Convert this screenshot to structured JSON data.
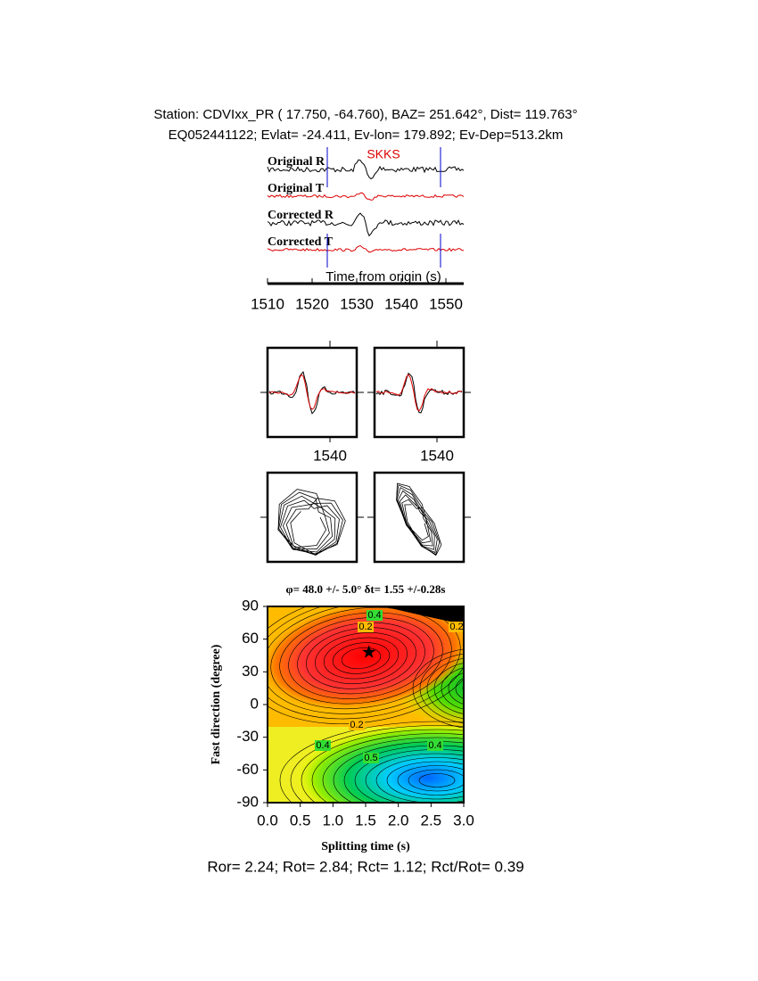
{
  "header": {
    "station": "Station: CDVIxx_PR (  17.750,  -64.760), BAZ=  251.642°, Dist=  119.763°",
    "event": "EQ052441122; Evlat= -24.411, Ev-lon= 179.892; Ev-Dep=513.2km"
  },
  "chart_data": [
    {
      "type": "waveform",
      "traces": [
        "Original R",
        "Original T",
        "Corrected R",
        "Corrected T"
      ],
      "phase": "SKKS",
      "xlabel": "Time from origin (s)",
      "xlim": [
        1510,
        1554
      ],
      "xticks": [
        1510,
        1520,
        1530,
        1540,
        1550
      ]
    },
    {
      "type": "waveform-window",
      "xticks": [
        1540
      ]
    },
    {
      "type": "waveform-window",
      "xticks": [
        1540
      ]
    },
    {
      "type": "contour",
      "title": "φ= 48.0 +/- 5.0° δt= 1.55 +/-0.28s",
      "xlabel": "Splitting time (s)",
      "ylabel": "Fast direction (degree)",
      "xlim": [
        0,
        3
      ],
      "ylim": [
        -90,
        90
      ],
      "xticks": [
        {
          "value": 0,
          "label": "0.0"
        },
        0.5,
        {
          "value": 1,
          "label": "1.0"
        },
        1.5,
        {
          "value": 2,
          "label": "2.0"
        },
        2.5,
        {
          "value": 3,
          "label": "3.0"
        }
      ],
      "yticks": [
        -90,
        -60,
        -30,
        0,
        30,
        60,
        90
      ],
      "marker": {
        "x": 1.55,
        "y": 48
      },
      "contour_labels": [
        "0.4",
        "0.2",
        "0.2",
        "0.2",
        "0.4",
        "0.5",
        "0.4"
      ]
    }
  ],
  "footer": "Ror= 2.24; Rot= 2.84; Rct= 1.12; Rct/Rot= 0.39"
}
